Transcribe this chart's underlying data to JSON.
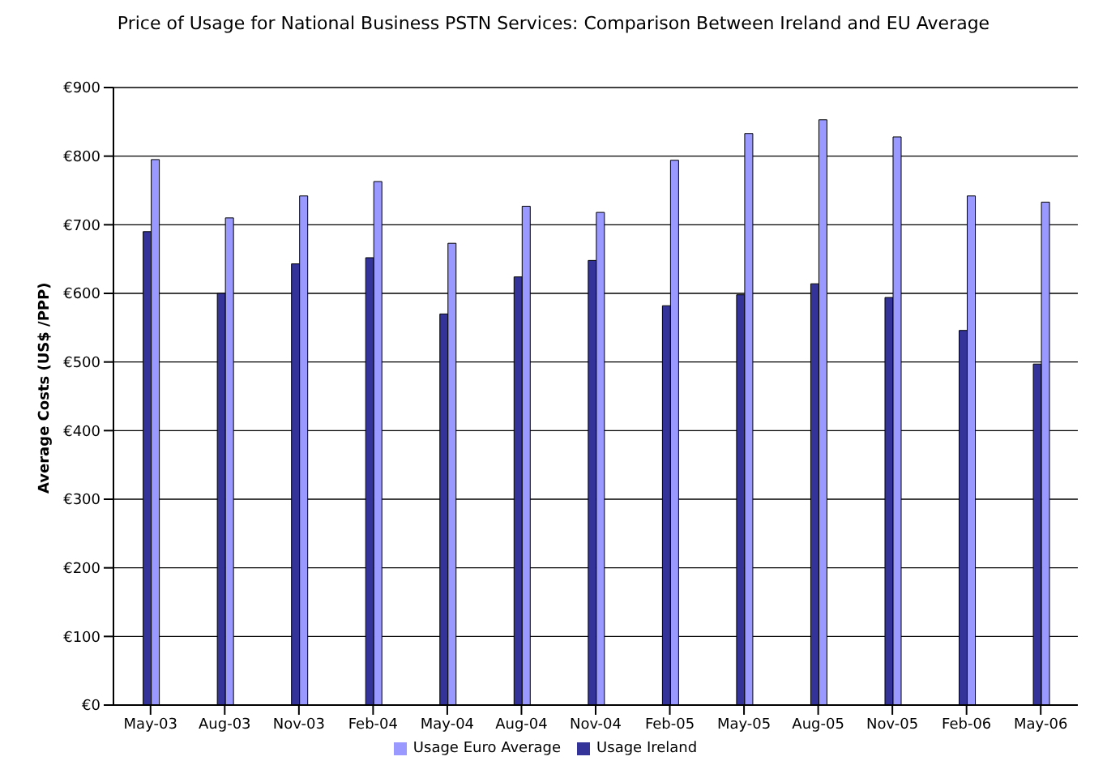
{
  "chart_data": {
    "type": "bar",
    "title": "Price of Usage for National Business PSTN Services: Comparison Between Ireland and EU Average",
    "ylabel": "Average Costs (US$ /PPP)",
    "categories": [
      "May-03",
      "Aug-03",
      "Nov-03",
      "Feb-04",
      "May-04",
      "Aug-04",
      "Nov-04",
      "Feb-05",
      "May-05",
      "Aug-05",
      "Nov-05",
      "Feb-06",
      "May-06"
    ],
    "series": [
      {
        "name": "Usage Ireland",
        "color": "#333399",
        "values": [
          690,
          600,
          643,
          652,
          570,
          624,
          648,
          582,
          598,
          614,
          594,
          546,
          497
        ]
      },
      {
        "name": "Usage Euro Average",
        "color": "#9999ff",
        "values": [
          795,
          710,
          742,
          763,
          673,
          727,
          718,
          794,
          833,
          853,
          828,
          742,
          733
        ]
      }
    ],
    "ylim": [
      0,
      900
    ],
    "yticks": [
      {
        "value": 0,
        "label": "€0"
      },
      {
        "value": 100,
        "label": "€100"
      },
      {
        "value": 200,
        "label": "€200"
      },
      {
        "value": 300,
        "label": "€300"
      },
      {
        "value": 400,
        "label": "€400"
      },
      {
        "value": 500,
        "label": "€500"
      },
      {
        "value": 600,
        "label": "€600"
      },
      {
        "value": 700,
        "label": "€700"
      },
      {
        "value": 800,
        "label": "€800"
      },
      {
        "value": 900,
        "label": "€900"
      }
    ],
    "grid": "y",
    "legend": "bottom"
  }
}
